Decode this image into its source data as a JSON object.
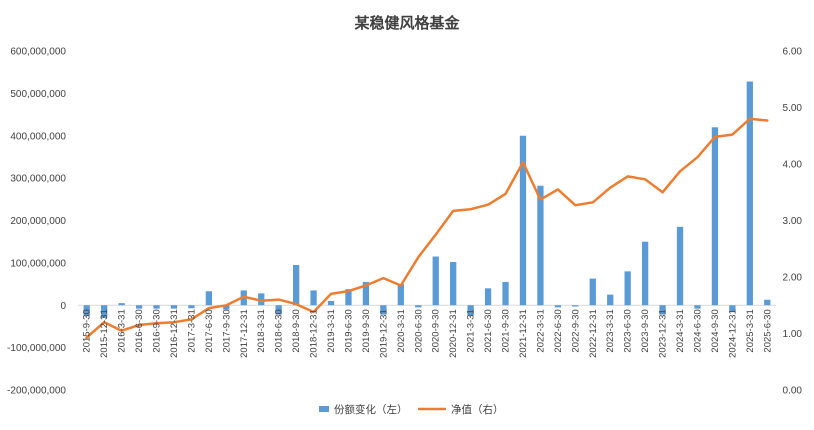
{
  "chart_data": {
    "type": "bar+line",
    "title": "某稳健风格基金",
    "categories": [
      "2015-9-30",
      "2015-12-31",
      "2016-3-31",
      "2016-6-30",
      "2016-9-30",
      "2016-12-31",
      "2017-3-31",
      "2017-6-30",
      "2017-9-30",
      "2017-12-31",
      "2018-3-31",
      "2018-6-30",
      "2018-9-30",
      "2018-12-31",
      "2019-3-31",
      "2019-6-30",
      "2019-9-30",
      "2019-12-31",
      "2020-3-31",
      "2020-6-30",
      "2020-9-30",
      "2020-12-31",
      "2021-3-31",
      "2021-6-30",
      "2021-9-30",
      "2021-12-31",
      "2022-3-31",
      "2022-6-30",
      "2022-9-30",
      "2022-12-31",
      "2023-3-31",
      "2023-6-30",
      "2023-9-30",
      "2023-12-31",
      "2024-3-31",
      "2024-6-30",
      "2024-9-30",
      "2024-12-31",
      "2025-3-31",
      "2025-6-30"
    ],
    "series": [
      {
        "name": "份额变化（左）",
        "type": "bar",
        "axis": "left",
        "color": "#5B9BD5",
        "values": [
          -25000000,
          -30000000,
          5000000,
          -8000000,
          -8000000,
          -8000000,
          -7000000,
          33000000,
          -10000000,
          35000000,
          28000000,
          -22000000,
          95000000,
          35000000,
          10000000,
          38000000,
          55000000,
          -22000000,
          50000000,
          -5000000,
          115000000,
          102000000,
          -25000000,
          40000000,
          55000000,
          400000000,
          282000000,
          -5000000,
          -3000000,
          63000000,
          25000000,
          80000000,
          150000000,
          -22000000,
          185000000,
          -8000000,
          420000000,
          -15000000,
          528000000,
          13000000
        ]
      },
      {
        "name": "净值（右）",
        "type": "line",
        "axis": "right",
        "color": "#ED7D31",
        "values": [
          0.93,
          1.2,
          1.05,
          1.15,
          1.18,
          1.2,
          1.25,
          1.45,
          1.5,
          1.65,
          1.58,
          1.6,
          1.52,
          1.38,
          1.7,
          1.75,
          1.85,
          1.98,
          1.85,
          2.35,
          2.75,
          3.17,
          3.2,
          3.28,
          3.47,
          4.03,
          3.37,
          3.55,
          3.27,
          3.32,
          3.58,
          3.78,
          3.73,
          3.5,
          3.87,
          4.12,
          4.48,
          4.52,
          4.8,
          4.77
        ]
      }
    ],
    "y_left": {
      "min": -200000000,
      "max": 600000000,
      "step": 100000000,
      "tick_labels": [
        "-200,000,000",
        "-100,000,000",
        "0",
        "100,000,000",
        "200,000,000",
        "300,000,000",
        "400,000,000",
        "500,000,000",
        "600,000,000"
      ]
    },
    "y_right": {
      "min": 0,
      "max": 6,
      "step": 1,
      "tick_labels": [
        "0.00",
        "1.00",
        "2.00",
        "3.00",
        "4.00",
        "5.00",
        "6.00"
      ]
    },
    "grid": false,
    "legend_position": "bottom"
  }
}
